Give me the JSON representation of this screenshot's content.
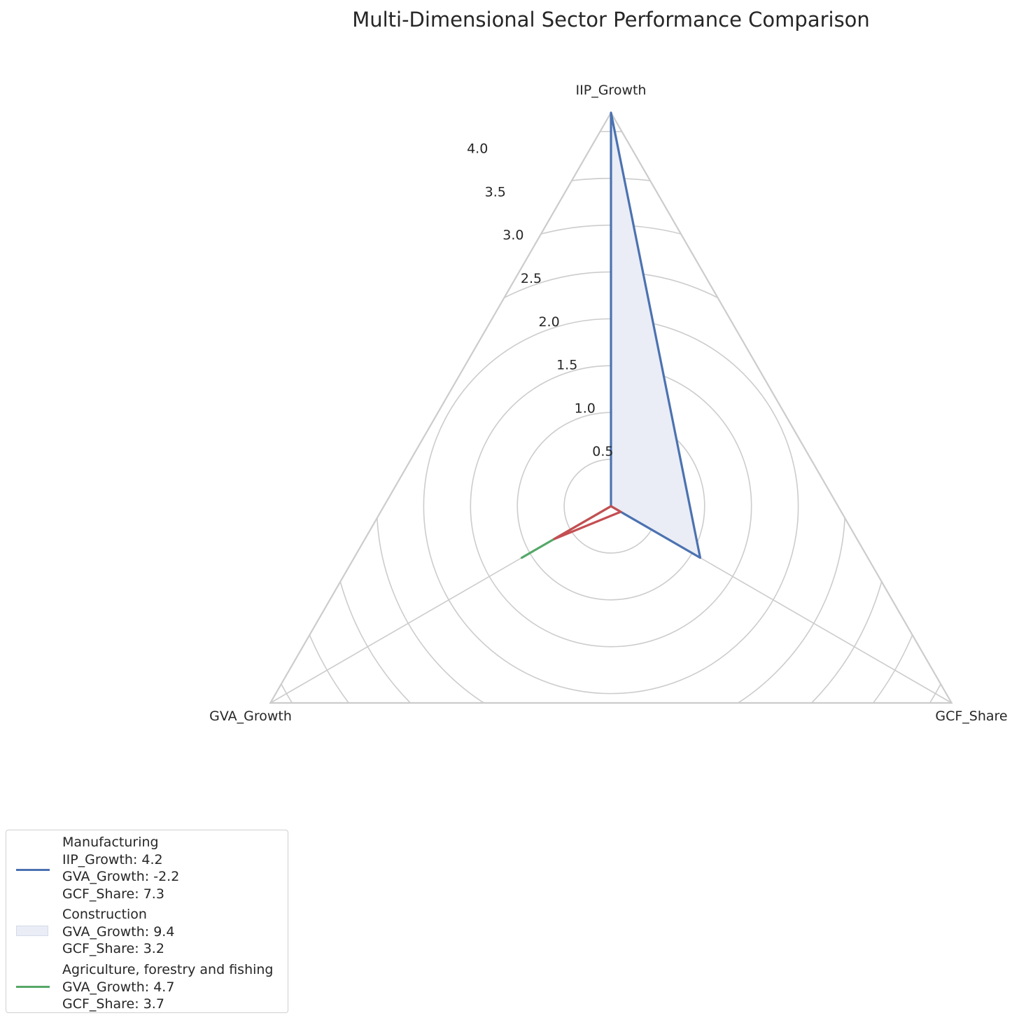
{
  "chart_data": {
    "type": "radar",
    "title": "Multi-Dimensional Sector Performance Comparison",
    "axes": [
      "IIP_Growth",
      "GVA_Growth",
      "GCF_Share"
    ],
    "radial_range": [
      0,
      4.2
    ],
    "radial_ticks": [
      "0.5",
      "1.0",
      "1.5",
      "2.0",
      "2.5",
      "3.0",
      "3.5",
      "4.0"
    ],
    "radial_tick_values": [
      0.5,
      1.0,
      1.5,
      2.0,
      2.5,
      3.0,
      3.5,
      4.0
    ],
    "grid": true,
    "gridline_shape": "circle",
    "legend_placement": "lower-left, below plot",
    "series": [
      {
        "color": "#4c72b0",
        "fill": true,
        "fill_color": "#eaedf6",
        "values": [
          4.2,
          0,
          1.1
        ]
      },
      {
        "color": "#55a868",
        "fill": false,
        "values": [
          0,
          1.1,
          0
        ]
      },
      {
        "color": "#c44e52",
        "fill": false,
        "values": [
          0,
          0.7,
          0.12
        ]
      }
    ],
    "legend": [
      {
        "name": "Manufacturing",
        "details": [
          "IIP_Growth: 4.2",
          "GVA_Growth: -2.2",
          "GCF_Share: 7.3"
        ],
        "marker": "line",
        "color": "#4c72b0"
      },
      {
        "name": "Construction",
        "details": [
          "GVA_Growth: 9.4",
          "GCF_Share: 3.2"
        ],
        "marker": "patch",
        "color": "#eaedf6"
      },
      {
        "name": "Agriculture, forestry and fishing",
        "details": [
          "GVA_Growth: 4.7",
          "GCF_Share: 3.7"
        ],
        "marker": "line",
        "color": "#55a868"
      }
    ]
  }
}
